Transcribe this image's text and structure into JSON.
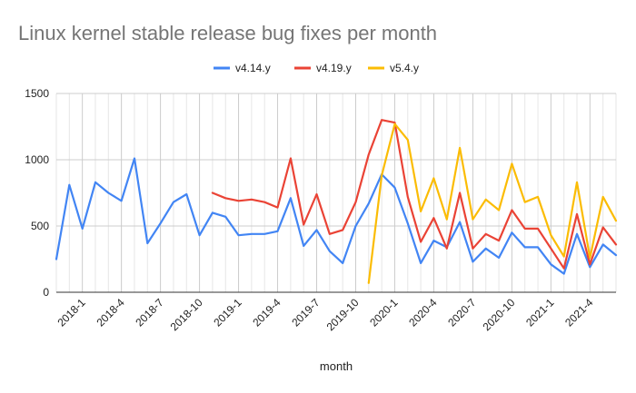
{
  "chart_data": {
    "type": "line",
    "title": "Linux kernel stable release bug fixes per month",
    "xlabel": "month",
    "ylabel": "",
    "ylim": [
      0,
      1500
    ],
    "yticks": [
      0,
      500,
      1000,
      1500
    ],
    "ytick_labels": [
      "0",
      "500",
      "1000",
      "1500"
    ],
    "legend_position": "top",
    "grid": true,
    "x": [
      "2017-11",
      "2017-12",
      "2018-1",
      "2018-2",
      "2018-3",
      "2018-4",
      "2018-5",
      "2018-6",
      "2018-7",
      "2018-8",
      "2018-9",
      "2018-10",
      "2018-11",
      "2018-12",
      "2019-1",
      "2019-2",
      "2019-3",
      "2019-4",
      "2019-5",
      "2019-6",
      "2019-7",
      "2019-8",
      "2019-9",
      "2019-10",
      "2019-11",
      "2019-12",
      "2020-1",
      "2020-2",
      "2020-3",
      "2020-4",
      "2020-5",
      "2020-6",
      "2020-7",
      "2020-8",
      "2020-9",
      "2020-10",
      "2020-11",
      "2020-12",
      "2021-1",
      "2021-2",
      "2021-3",
      "2021-4",
      "2021-5",
      "2021-6"
    ],
    "x_tick_labels": [
      "2018-1",
      "2018-4",
      "2018-7",
      "2018-10",
      "2019-1",
      "2019-4",
      "2019-7",
      "2019-10",
      "2020-1",
      "2020-4",
      "2020-7",
      "2020-10",
      "2021-1",
      "2021-4"
    ],
    "series": [
      {
        "name": "v4.14.y",
        "color": "#4285f4",
        "values": [
          250,
          810,
          480,
          830,
          750,
          690,
          1010,
          370,
          520,
          680,
          740,
          430,
          600,
          570,
          430,
          440,
          440,
          460,
          710,
          350,
          470,
          310,
          220,
          500,
          670,
          890,
          790,
          520,
          220,
          390,
          340,
          530,
          230,
          330,
          260,
          450,
          340,
          340,
          210,
          140,
          440,
          190,
          360,
          280
        ]
      },
      {
        "name": "v4.19.y",
        "color": "#ea4335",
        "values": [
          null,
          null,
          null,
          null,
          null,
          null,
          null,
          null,
          null,
          null,
          null,
          null,
          750,
          710,
          690,
          700,
          680,
          640,
          1010,
          510,
          740,
          440,
          470,
          680,
          1040,
          1300,
          1280,
          720,
          380,
          560,
          330,
          750,
          330,
          440,
          390,
          620,
          480,
          480,
          330,
          180,
          590,
          210,
          490,
          360
        ]
      },
      {
        "name": "v5.4.y",
        "color": "#fbbc04",
        "values": [
          null,
          null,
          null,
          null,
          null,
          null,
          null,
          null,
          null,
          null,
          null,
          null,
          null,
          null,
          null,
          null,
          null,
          null,
          null,
          null,
          null,
          null,
          null,
          null,
          70,
          880,
          1270,
          1150,
          610,
          860,
          550,
          1090,
          550,
          700,
          620,
          970,
          680,
          720,
          430,
          270,
          830,
          260,
          720,
          540
        ]
      }
    ]
  }
}
